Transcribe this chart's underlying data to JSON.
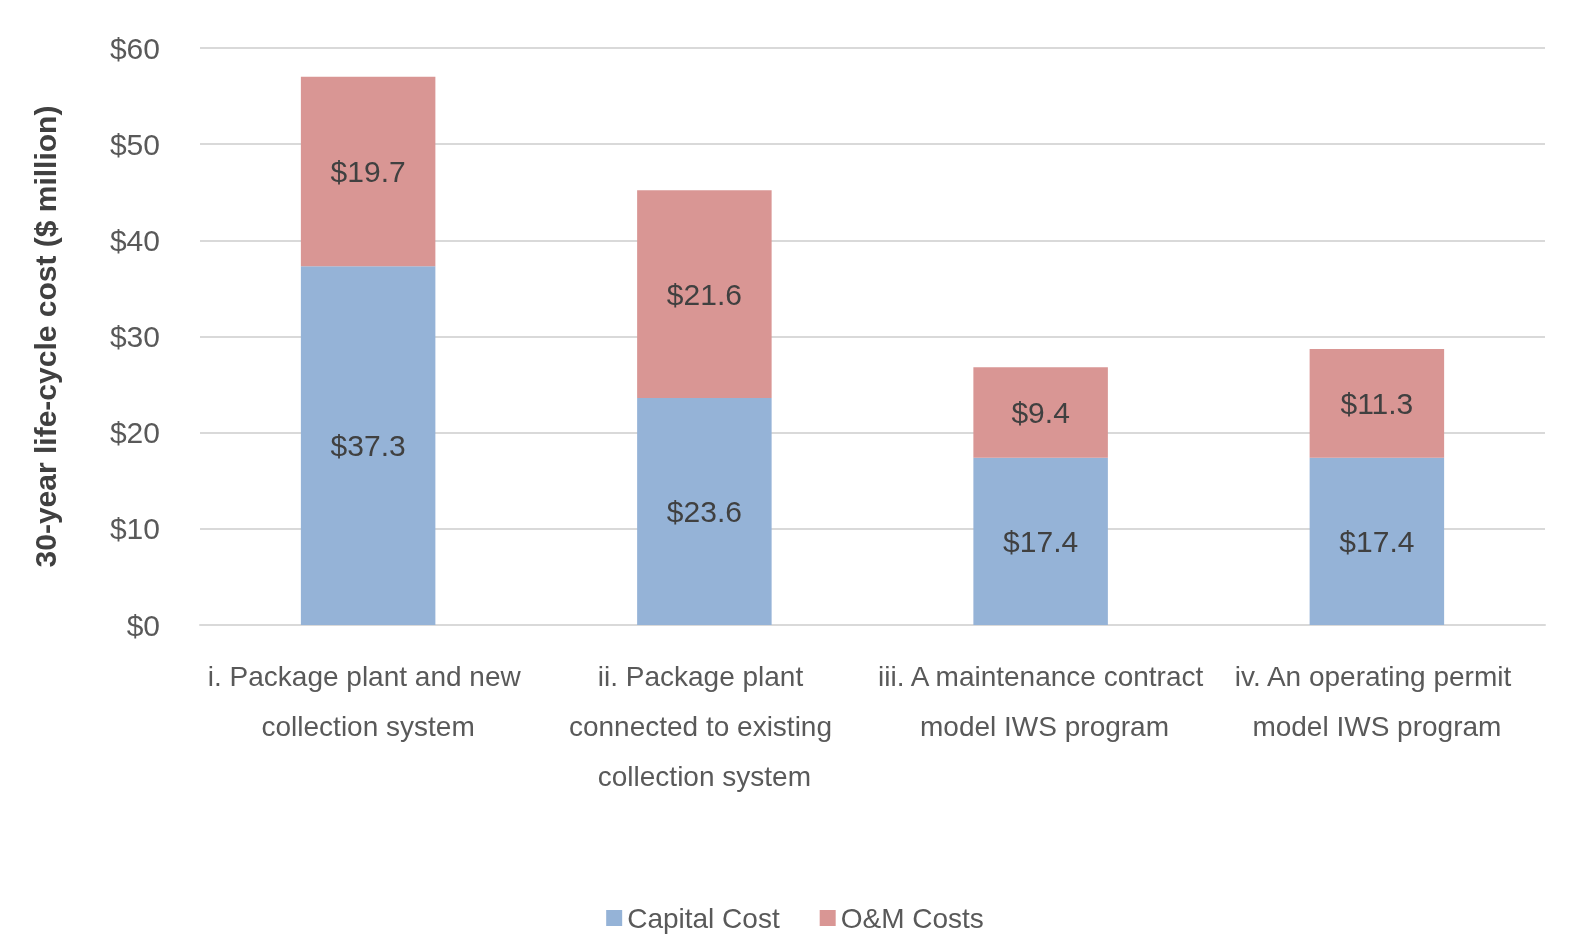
{
  "chart_data": {
    "type": "bar",
    "stacked": true,
    "ylabel": "30-year life-cycle cost ($ million)",
    "categories": [
      "i. Package plant and new collection system",
      "ii. Package plant connected to existing collection system",
      "iii. A maintenance contract model IWS program",
      "iv. An operating permit model IWS program"
    ],
    "series": [
      {
        "name": "Capital Cost",
        "color": "#95b3d7",
        "values": [
          37.3,
          23.6,
          17.4,
          17.4
        ],
        "value_labels": [
          "$37.3",
          "$23.6",
          "$17.4",
          "$17.4"
        ]
      },
      {
        "name": "O&M Costs",
        "color": "#d99694",
        "values": [
          19.7,
          21.6,
          9.4,
          11.3
        ],
        "value_labels": [
          "$19.7",
          "$21.6",
          "$9.4",
          "$11.3"
        ]
      }
    ],
    "ylim": [
      0,
      60
    ],
    "yticks": [
      {
        "value": 0,
        "label": "$0"
      },
      {
        "value": 10,
        "label": "$10"
      },
      {
        "value": 20,
        "label": "$20"
      },
      {
        "value": 30,
        "label": "$30"
      },
      {
        "value": 40,
        "label": "$40"
      },
      {
        "value": 50,
        "label": "$50"
      },
      {
        "value": 60,
        "label": "$60"
      }
    ],
    "grid": "y",
    "legend": "bottom"
  }
}
